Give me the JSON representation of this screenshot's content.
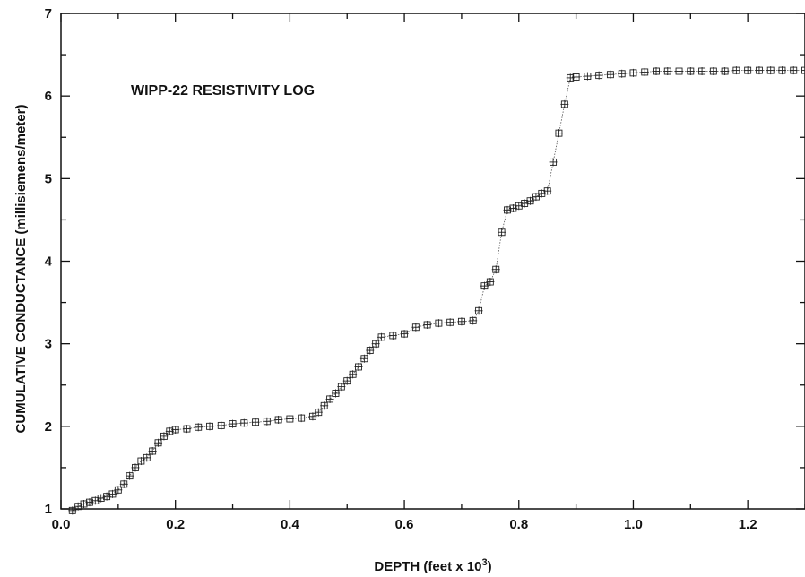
{
  "chart_data": {
    "type": "scatter",
    "title": "WIPP-22 RESISTIVITY LOG",
    "xlabel": "DEPTH (feet x 10",
    "xlabel_sup": "3",
    "xlabel_end": ")",
    "ylabel": "CUMULATIVE CONDUCTANCE (millisiemens/meter)",
    "xlim": [
      0.0,
      1.3
    ],
    "ylim": [
      1,
      7
    ],
    "x_ticks": [
      "0.0",
      "0.2",
      "0.4",
      "0.6",
      "0.8",
      "1.0",
      "1.2"
    ],
    "x_tick_values": [
      0.0,
      0.2,
      0.4,
      0.6,
      0.8,
      1.0,
      1.2
    ],
    "y_ticks": [
      "1",
      "2",
      "3",
      "4",
      "5",
      "6",
      "7"
    ],
    "y_tick_values": [
      1,
      2,
      3,
      4,
      5,
      6,
      7
    ],
    "grid": false,
    "marker": "square-with-cross",
    "series": [
      {
        "points": [
          [
            0.02,
            0.98
          ],
          [
            0.03,
            1.03
          ],
          [
            0.04,
            1.06
          ],
          [
            0.05,
            1.08
          ],
          [
            0.06,
            1.1
          ],
          [
            0.07,
            1.13
          ],
          [
            0.08,
            1.15
          ],
          [
            0.09,
            1.18
          ],
          [
            0.1,
            1.23
          ],
          [
            0.11,
            1.3
          ],
          [
            0.12,
            1.4
          ],
          [
            0.13,
            1.5
          ],
          [
            0.14,
            1.58
          ],
          [
            0.15,
            1.62
          ],
          [
            0.16,
            1.7
          ],
          [
            0.17,
            1.8
          ],
          [
            0.18,
            1.88
          ],
          [
            0.19,
            1.94
          ],
          [
            0.2,
            1.96
          ],
          [
            0.22,
            1.97
          ],
          [
            0.24,
            1.99
          ],
          [
            0.26,
            2.0
          ],
          [
            0.28,
            2.01
          ],
          [
            0.3,
            2.03
          ],
          [
            0.32,
            2.04
          ],
          [
            0.34,
            2.05
          ],
          [
            0.36,
            2.06
          ],
          [
            0.38,
            2.08
          ],
          [
            0.4,
            2.09
          ],
          [
            0.42,
            2.1
          ],
          [
            0.44,
            2.12
          ],
          [
            0.45,
            2.17
          ],
          [
            0.46,
            2.25
          ],
          [
            0.47,
            2.33
          ],
          [
            0.48,
            2.4
          ],
          [
            0.49,
            2.48
          ],
          [
            0.5,
            2.55
          ],
          [
            0.51,
            2.63
          ],
          [
            0.52,
            2.72
          ],
          [
            0.53,
            2.82
          ],
          [
            0.54,
            2.92
          ],
          [
            0.55,
            3.0
          ],
          [
            0.56,
            3.08
          ],
          [
            0.58,
            3.1
          ],
          [
            0.6,
            3.12
          ],
          [
            0.62,
            3.2
          ],
          [
            0.64,
            3.23
          ],
          [
            0.66,
            3.25
          ],
          [
            0.68,
            3.26
          ],
          [
            0.7,
            3.27
          ],
          [
            0.72,
            3.28
          ],
          [
            0.73,
            3.4
          ],
          [
            0.74,
            3.7
          ],
          [
            0.75,
            3.75
          ],
          [
            0.76,
            3.9
          ],
          [
            0.77,
            4.35
          ],
          [
            0.78,
            4.62
          ],
          [
            0.79,
            4.64
          ],
          [
            0.8,
            4.67
          ],
          [
            0.81,
            4.7
          ],
          [
            0.82,
            4.73
          ],
          [
            0.83,
            4.78
          ],
          [
            0.84,
            4.82
          ],
          [
            0.85,
            4.85
          ],
          [
            0.86,
            5.2
          ],
          [
            0.87,
            5.55
          ],
          [
            0.88,
            5.9
          ],
          [
            0.89,
            6.22
          ],
          [
            0.9,
            6.23
          ],
          [
            0.92,
            6.24
          ],
          [
            0.94,
            6.25
          ],
          [
            0.96,
            6.26
          ],
          [
            0.98,
            6.27
          ],
          [
            1.0,
            6.28
          ],
          [
            1.02,
            6.29
          ],
          [
            1.04,
            6.3
          ],
          [
            1.06,
            6.3
          ],
          [
            1.08,
            6.3
          ],
          [
            1.1,
            6.3
          ],
          [
            1.12,
            6.3
          ],
          [
            1.14,
            6.3
          ],
          [
            1.16,
            6.3
          ],
          [
            1.18,
            6.31
          ],
          [
            1.2,
            6.31
          ],
          [
            1.22,
            6.31
          ],
          [
            1.24,
            6.31
          ],
          [
            1.26,
            6.31
          ],
          [
            1.28,
            6.31
          ],
          [
            1.3,
            6.31
          ]
        ]
      }
    ]
  }
}
